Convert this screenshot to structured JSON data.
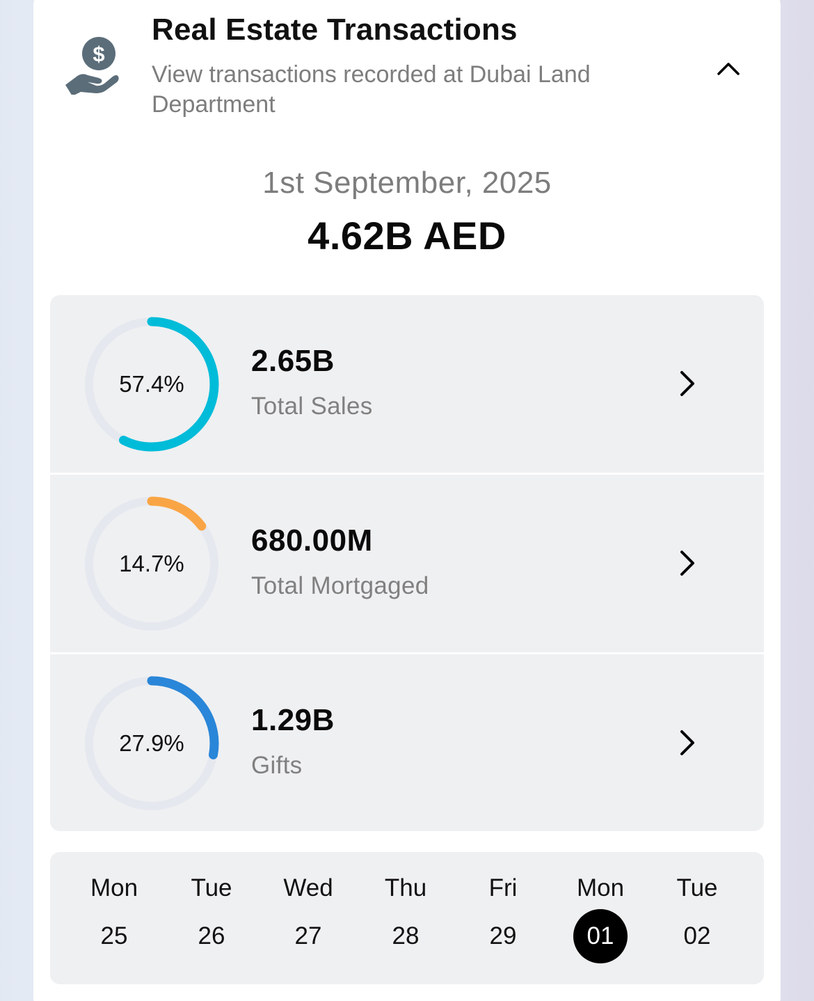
{
  "header": {
    "title": "Real Estate Transactions",
    "subtitle": "View transactions recorded at Dubai Land Department",
    "icon": "money-hand-icon"
  },
  "summary": {
    "date": "1st September, 2025",
    "total": "4.62B AED"
  },
  "stats": [
    {
      "percent_label": "57.4%",
      "percent": 57.4,
      "value": "2.65B",
      "label": "Total Sales",
      "color": "#00bcd9"
    },
    {
      "percent_label": "14.7%",
      "percent": 14.7,
      "value": "680.00M",
      "label": "Total Mortgaged",
      "color": "#f9a545"
    },
    {
      "percent_label": "27.9%",
      "percent": 27.9,
      "value": "1.29B",
      "label": "Gifts",
      "color": "#2a86d8"
    }
  ],
  "ring_track_color": "#e6e8ef",
  "days": [
    {
      "name": "Mon",
      "num": "25"
    },
    {
      "name": "Tue",
      "num": "26"
    },
    {
      "name": "Wed",
      "num": "27"
    },
    {
      "name": "Thu",
      "num": "28"
    },
    {
      "name": "Fri",
      "num": "29"
    },
    {
      "name": "Mon",
      "num": "01",
      "selected": true
    },
    {
      "name": "Tue",
      "num": "02"
    }
  ]
}
